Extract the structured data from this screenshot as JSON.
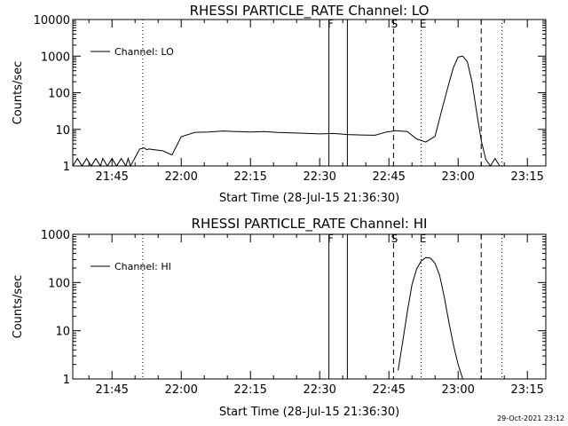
{
  "chart_data": [
    {
      "type": "line",
      "title": "RHESSI PARTICLE_RATE Channel: LO",
      "xlabel": "Start Time (28-Jul-15 21:36:30)",
      "ylabel": "Counts/sec",
      "yscale": "log",
      "ylim": [
        1,
        10000
      ],
      "y_ticks": [
        "1",
        "10",
        "100",
        "1000",
        "10000"
      ],
      "xlim": [
        "21:36:30",
        "23:19:00"
      ],
      "x_ticks": [
        "21:45",
        "22:00",
        "22:15",
        "22:30",
        "22:45",
        "23:00",
        "23:15"
      ],
      "legend": {
        "position": "top-left",
        "entries": [
          "Channel: LO"
        ]
      },
      "series": [
        {
          "name": "Channel: LO",
          "x": [
            "21:36:30",
            "21:37:30",
            "21:38:30",
            "21:39:30",
            "21:40:30",
            "21:41:30",
            "21:42:30",
            "21:43:00",
            "21:44:00",
            "21:45:00",
            "21:46:00",
            "21:47:00",
            "21:48:00",
            "21:48:30",
            "21:49:00",
            "21:50:00",
            "21:51:00",
            "21:52:00",
            "21:52:30",
            "21:53:00",
            "21:54:00",
            "21:56:00",
            "21:58:00",
            "22:00:00",
            "22:03:00",
            "22:06:00",
            "22:09:00",
            "22:12:00",
            "22:15:00",
            "22:18:00",
            "22:21:00",
            "22:24:00",
            "22:27:00",
            "22:30:00",
            "22:33:00",
            "22:36:00",
            "22:39:00",
            "22:42:00",
            "22:44:30",
            "22:45:30",
            "22:46:30",
            "22:47:30",
            "22:49:00",
            "22:51:00",
            "22:53:00",
            "22:55:00",
            "22:56:30",
            "22:58:00",
            "22:59:00",
            "23:00:00",
            "23:01:00",
            "23:02:00",
            "23:03:00",
            "23:04:00",
            "23:05:00",
            "23:06:00",
            "23:07:00",
            "23:08:00",
            "23:09:00"
          ],
          "y": [
            1,
            1.6,
            1,
            1.6,
            1,
            1.6,
            1,
            1.6,
            1,
            1.6,
            1,
            1.6,
            1,
            1.6,
            1,
            1.7,
            2.9,
            3.1,
            2.8,
            2.9,
            2.8,
            2.6,
            2.0,
            6.3,
            8.3,
            8.5,
            9.0,
            8.7,
            8.5,
            8.7,
            8.2,
            8.0,
            7.8,
            7.5,
            7.7,
            7.2,
            7.0,
            6.9,
            8.5,
            8.8,
            9.2,
            9.0,
            8.7,
            5.5,
            4.5,
            6.5,
            35,
            180,
            500,
            950,
            1000,
            700,
            200,
            30,
            5,
            1.5,
            1,
            1.6,
            1
          ]
        }
      ],
      "annotations": [
        {
          "label": "F",
          "x": "22:32:00",
          "style": "solid"
        },
        {
          "label": "",
          "x": "22:36:00",
          "style": "solid"
        },
        {
          "label": "S",
          "x": "22:46:00",
          "style": "dashed"
        },
        {
          "label": "E",
          "x": "22:52:00",
          "style": "dotted"
        },
        {
          "label": "",
          "x": "23:05:00",
          "style": "dashed"
        },
        {
          "label": "",
          "x": "23:09:30",
          "style": "dotted"
        },
        {
          "label": "",
          "x": "21:51:40",
          "style": "dotted"
        }
      ]
    },
    {
      "type": "line",
      "title": "RHESSI PARTICLE_RATE Channel: HI",
      "xlabel": "Start Time (28-Jul-15 21:36:30)",
      "ylabel": "Counts/sec",
      "yscale": "log",
      "ylim": [
        1,
        1000
      ],
      "y_ticks": [
        "1",
        "10",
        "100",
        "1000"
      ],
      "xlim": [
        "21:36:30",
        "23:19:00"
      ],
      "x_ticks": [
        "21:45",
        "22:00",
        "22:15",
        "22:30",
        "22:45",
        "23:00",
        "23:15"
      ],
      "legend": {
        "position": "top-left",
        "entries": [
          "Channel: HI"
        ]
      },
      "series": [
        {
          "name": "Channel: HI",
          "x": [
            "22:47:00",
            "22:48:00",
            "22:49:00",
            "22:50:00",
            "22:51:00",
            "22:52:00",
            "22:53:00",
            "22:54:00",
            "22:55:00",
            "22:56:00",
            "22:57:00",
            "22:58:00",
            "22:59:00",
            "23:00:00",
            "23:01:00"
          ],
          "y": [
            1.5,
            6,
            25,
            90,
            190,
            280,
            330,
            320,
            250,
            140,
            50,
            15,
            5,
            2,
            1
          ]
        }
      ],
      "annotations": [
        {
          "label": "F",
          "x": "22:32:00",
          "style": "solid"
        },
        {
          "label": "",
          "x": "22:36:00",
          "style": "solid"
        },
        {
          "label": "S",
          "x": "22:46:00",
          "style": "dashed"
        },
        {
          "label": "E",
          "x": "22:52:00",
          "style": "dotted"
        },
        {
          "label": "",
          "x": "23:05:00",
          "style": "dashed"
        },
        {
          "label": "",
          "x": "23:09:30",
          "style": "dotted"
        },
        {
          "label": "",
          "x": "21:51:40",
          "style": "dotted"
        }
      ]
    }
  ],
  "footer": {
    "timestamp": "29-Oct-2021 23:12"
  }
}
